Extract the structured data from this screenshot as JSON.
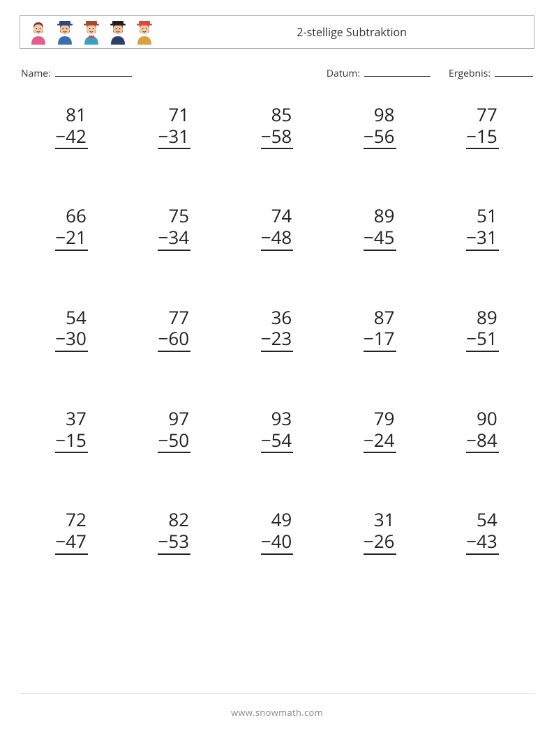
{
  "header": {
    "title": "2-stellige Subtraktion",
    "icons": [
      {
        "name": "avatar-woman-pink",
        "hair": "#6b3d2e",
        "shirt": "#e95a8c",
        "skin": "#f7c9a8",
        "hat": null
      },
      {
        "name": "avatar-police",
        "hair": "#2b2b2b",
        "shirt": "#3a6fb0",
        "skin": "#f2c29b",
        "hat": "#2a4b7c"
      },
      {
        "name": "avatar-attendant",
        "hair": "#a54b2e",
        "shirt": "#3aa0c9",
        "skin": "#f7c9a8",
        "hat": "#a54b2e",
        "scarf": "#d94a5a"
      },
      {
        "name": "avatar-graduate",
        "hair": "#2b2b2b",
        "shirt": "#2d3e6b",
        "skin": "#f2c29b",
        "hat": "#1f1f1f"
      },
      {
        "name": "avatar-firefighter",
        "hair": "#8a4a2e",
        "shirt": "#d9a03c",
        "skin": "#f7c9a8",
        "hat": "#d94a3c"
      }
    ]
  },
  "meta": {
    "name_label": "Name:",
    "date_label": "Datum:",
    "result_label": "Ergebnis:"
  },
  "worksheet": {
    "type": "subtraction-grid",
    "operator": "−",
    "columns": 5,
    "rows": 5,
    "number_fontsize": 26,
    "text_color": "#222222",
    "background_color": "#ffffff",
    "problems": [
      {
        "a": 81,
        "b": 42
      },
      {
        "a": 71,
        "b": 31
      },
      {
        "a": 85,
        "b": 58
      },
      {
        "a": 98,
        "b": 56
      },
      {
        "a": 77,
        "b": 15
      },
      {
        "a": 66,
        "b": 21
      },
      {
        "a": 75,
        "b": 34
      },
      {
        "a": 74,
        "b": 48
      },
      {
        "a": 89,
        "b": 45
      },
      {
        "a": 51,
        "b": 31
      },
      {
        "a": 54,
        "b": 30
      },
      {
        "a": 77,
        "b": 60
      },
      {
        "a": 36,
        "b": 23
      },
      {
        "a": 87,
        "b": 17
      },
      {
        "a": 89,
        "b": 51
      },
      {
        "a": 37,
        "b": 15
      },
      {
        "a": 97,
        "b": 50
      },
      {
        "a": 93,
        "b": 54
      },
      {
        "a": 79,
        "b": 24
      },
      {
        "a": 90,
        "b": 84
      },
      {
        "a": 72,
        "b": 47
      },
      {
        "a": 82,
        "b": 53
      },
      {
        "a": 49,
        "b": 40
      },
      {
        "a": 31,
        "b": 26
      },
      {
        "a": 54,
        "b": 43
      }
    ]
  },
  "footer": {
    "text": "www.snowmath.com",
    "color": "#8a8a8a"
  }
}
